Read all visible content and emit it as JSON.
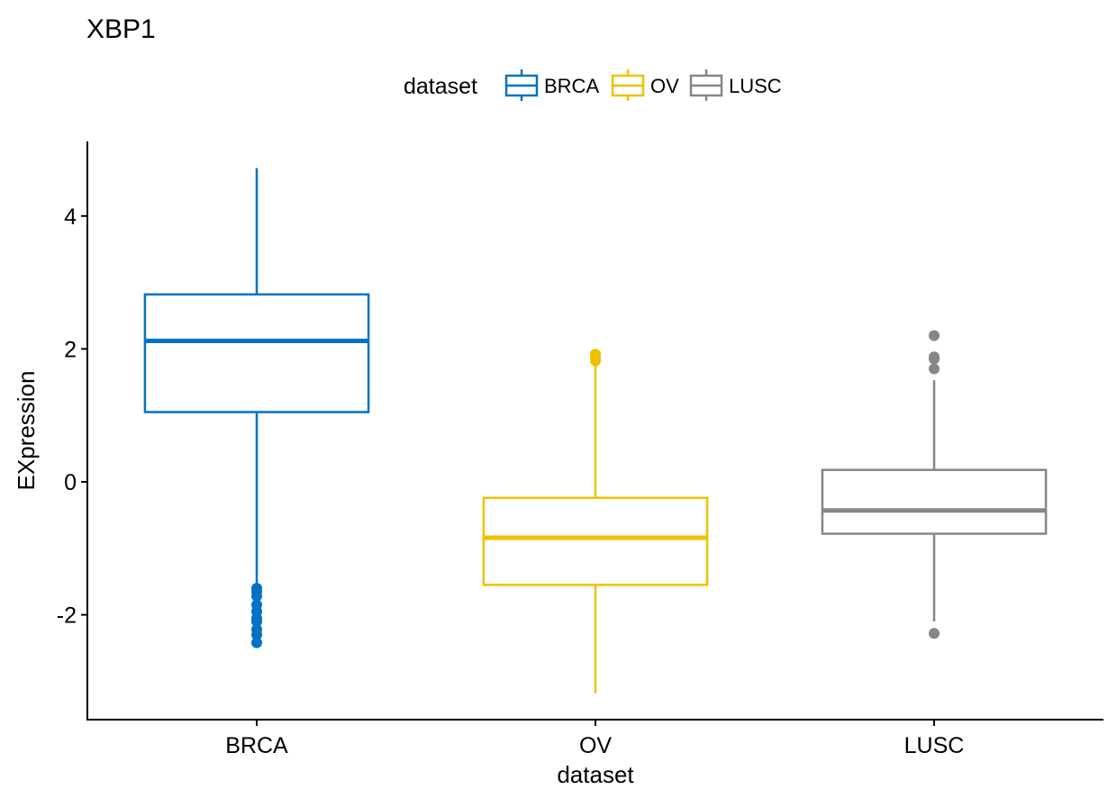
{
  "chart_data": {
    "type": "boxplot",
    "title": "XBP1",
    "xlabel": "dataset",
    "ylabel": "EXpression",
    "ylim": [
      -3.6,
      5.2
    ],
    "yticks": [
      -2,
      0,
      2,
      4
    ],
    "ytick_labels": [
      "-2",
      "0",
      "2",
      "4"
    ],
    "categories": [
      "BRCA",
      "OV",
      "LUSC"
    ],
    "legend": {
      "title": "dataset",
      "position": "top",
      "entries": [
        "BRCA",
        "OV",
        "LUSC"
      ]
    },
    "series": [
      {
        "name": "BRCA",
        "color": "#0073C2",
        "whisker_low": -1.55,
        "q1": 1.05,
        "median": 2.12,
        "q3": 2.82,
        "whisker_high": 4.72,
        "outliers": [
          -1.6,
          -1.65,
          -1.72,
          -1.85,
          -1.95,
          -2.05,
          -2.1,
          -2.22,
          -2.3,
          -2.42
        ]
      },
      {
        "name": "OV",
        "color": "#EFC000",
        "whisker_low": -3.18,
        "q1": -1.55,
        "median": -0.84,
        "q3": -0.24,
        "whisker_high": 1.75,
        "outliers": [
          1.82,
          1.87,
          1.92
        ]
      },
      {
        "name": "LUSC",
        "color": "#868686",
        "whisker_low": -2.1,
        "q1": -0.78,
        "median": -0.43,
        "q3": 0.18,
        "whisker_high": 1.53,
        "outliers": [
          1.7,
          1.85,
          1.88,
          2.2,
          -2.28
        ]
      }
    ],
    "grid": false
  }
}
